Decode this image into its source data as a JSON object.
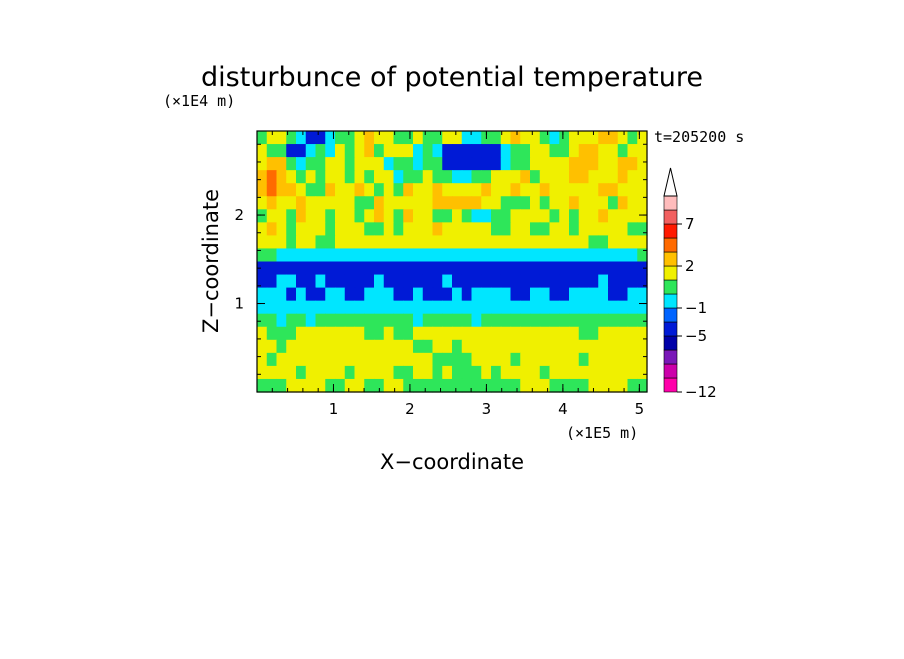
{
  "chart_data": {
    "type": "heatmap",
    "title": "disturbunce of potential temperature",
    "xlabel": "X−coordinate",
    "ylabel": "Z−coordinate",
    "x_scale_label": "(×1E5 m)",
    "y_scale_label": "(×1E4 m)",
    "time_label": "t=205200 s",
    "xlim": [
      0,
      5.1
    ],
    "ylim": [
      0,
      2.95
    ],
    "x_ticks": [
      1,
      2,
      3,
      4,
      5
    ],
    "y_ticks": [
      1,
      2
    ],
    "colorbar": {
      "tick_labels": [
        {
          "label": "7",
          "value": 7
        },
        {
          "label": "2",
          "value": 2
        },
        {
          "label": "−1",
          "value": -1
        },
        {
          "label": "−5",
          "value": -5
        },
        {
          "label": "−12",
          "value": -12
        }
      ],
      "levels": [
        {
          "lo": -12,
          "hi": -10,
          "color": "#ff00aa"
        },
        {
          "lo": -10,
          "hi": -8,
          "color": "#cc00aa"
        },
        {
          "lo": -8,
          "hi": -6,
          "color": "#7a18b8"
        },
        {
          "lo": -6,
          "hi": -5,
          "color": "#0000a8"
        },
        {
          "lo": -5,
          "hi": -3,
          "color": "#001ad6"
        },
        {
          "lo": -3,
          "hi": -1,
          "color": "#0064ff"
        },
        {
          "lo": -1,
          "hi": 0,
          "color": "#00e6ff"
        },
        {
          "lo": 0,
          "hi": 1,
          "color": "#2ee65a"
        },
        {
          "lo": 1,
          "hi": 2,
          "color": "#f0f000"
        },
        {
          "lo": 2,
          "hi": 3,
          "color": "#ffc000"
        },
        {
          "lo": 3,
          "hi": 5,
          "color": "#ff6a00"
        },
        {
          "lo": 5,
          "hi": 7,
          "color": "#ff1a00"
        },
        {
          "lo": 7,
          "hi": 9,
          "color": "#f26060"
        },
        {
          "lo": 9,
          "hi": 12,
          "color": "#ffbcbc"
        }
      ]
    },
    "field": {
      "rows_top_to_bottom": [
        "GYYGCBBCGGYOYYGGYGGYYCCGGYOYYGCGYYYOOYGY",
        "YGGBBCGCYGYOGYYYCGCBBBBBBCGGYYGGYOOYYGYY",
        "YOOGCGGYYGYYYCGGCGGBBBBBBCGGYYYYOOOYYOOY",
        "OROYGYGYYGYGYYCGGYGGCCGGYYYOGYYYOOYYYOYY",
        "OROOYGGOYYOYGYGOYYOYYYYOYYOYYOYYYYYOOYYY",
        "YOYYOYYYYYGGOYYYYYOOOOOYYGGGYGYYOYYYGOYY",
        "GYYGOYYGYYGYOYGOYYGGYGCCGGYYYYGYGYYOYYYY",
        "YOYGYYYGYYYGGYGYYYOYYYYYGGYYGGYYGYYYYYGG",
        "YYYGYYGGYYYYYYYYYYYYYYYYYYYYYYYYYYGGYYYY",
        "GGCCCCCCCCCCCCCCCCCCCCCCCCCCCCCCCCCCCCCG",
        "BBBBBBBBBBBBBBBBBBBBBBBBBBBBBBBBBBBBBBBB",
        "BBCCBBCBBBBBCBBBBBBCBBBBBBBBBBBBBBBCBBBB",
        "CCCBCBBCCBBCCCBBCBBBCBCCCCBBCCBBCCCCBBCC",
        "CCCCCCCCCCCCCCCCCCCCCCCCCCCCCCCCCCCCCCCC",
        "GGCGGCGGGGGGGGGGCGGGGGCGGGGGGGGGGGGGGGGG",
        "YGGGYYYYYYYGGYGGYYYYYYYYYYYYYYYYYGGYYYYY",
        "YYGYYYYYYYYYYYYYGGYYGYYYYYYYYYYYYYYYYYYY",
        "YGYYYYYYYYYYYYYYYYGGGGYYYYGYYYYYYGYYYYYY",
        "YYYYGYYYYGYYYYGGYYGYGGGYGYYYYGYYYYYYYYYY",
        "GGGYYYYGGYYGGYYGGGGGGGGGGGGYYYGGGGYYYYGG"
      ],
      "key": {
        "B": "#001ad6",
        "C": "#00e6ff",
        "G": "#2ee65a",
        "Y": "#f0f000",
        "O": "#ffc000",
        "R": "#ff6a00"
      }
    }
  }
}
